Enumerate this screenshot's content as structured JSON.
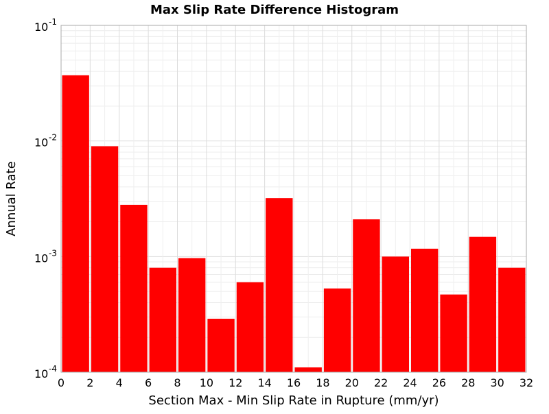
{
  "chart_data": {
    "type": "bar",
    "title": "Max Slip Rate Difference Histogram",
    "xlabel": "Section Max - Min Slip Rate in Rupture (mm/yr)",
    "ylabel": "Annual Rate",
    "xlim": [
      0,
      32
    ],
    "ylim": [
      0.0001,
      0.1
    ],
    "yscale": "log",
    "grid": true,
    "bar_color": "#ff0000",
    "x_ticks": [
      "0",
      "2",
      "4",
      "6",
      "8",
      "10",
      "12",
      "14",
      "16",
      "18",
      "20",
      "22",
      "24",
      "26",
      "28",
      "30",
      "32"
    ],
    "y_ticks": [
      {
        "base": "10",
        "exp": "-1"
      },
      {
        "base": "10",
        "exp": "-2"
      },
      {
        "base": "10",
        "exp": "-3"
      },
      {
        "base": "10",
        "exp": "-4"
      }
    ],
    "bin_width": 2,
    "bins": [
      {
        "x_start": 0,
        "value": 0.037
      },
      {
        "x_start": 2,
        "value": 0.009
      },
      {
        "x_start": 4,
        "value": 0.0028
      },
      {
        "x_start": 6,
        "value": 0.0008
      },
      {
        "x_start": 8,
        "value": 0.00097
      },
      {
        "x_start": 10,
        "value": 0.00029
      },
      {
        "x_start": 12,
        "value": 0.0006
      },
      {
        "x_start": 14,
        "value": 0.0032
      },
      {
        "x_start": 16,
        "value": 0.00011
      },
      {
        "x_start": 18,
        "value": 0.00053
      },
      {
        "x_start": 20,
        "value": 0.0021
      },
      {
        "x_start": 22,
        "value": 0.001
      },
      {
        "x_start": 24,
        "value": 0.00117
      },
      {
        "x_start": 26,
        "value": 0.00047
      },
      {
        "x_start": 28,
        "value": 0.00148
      },
      {
        "x_start": 30,
        "value": 0.0008
      }
    ]
  }
}
